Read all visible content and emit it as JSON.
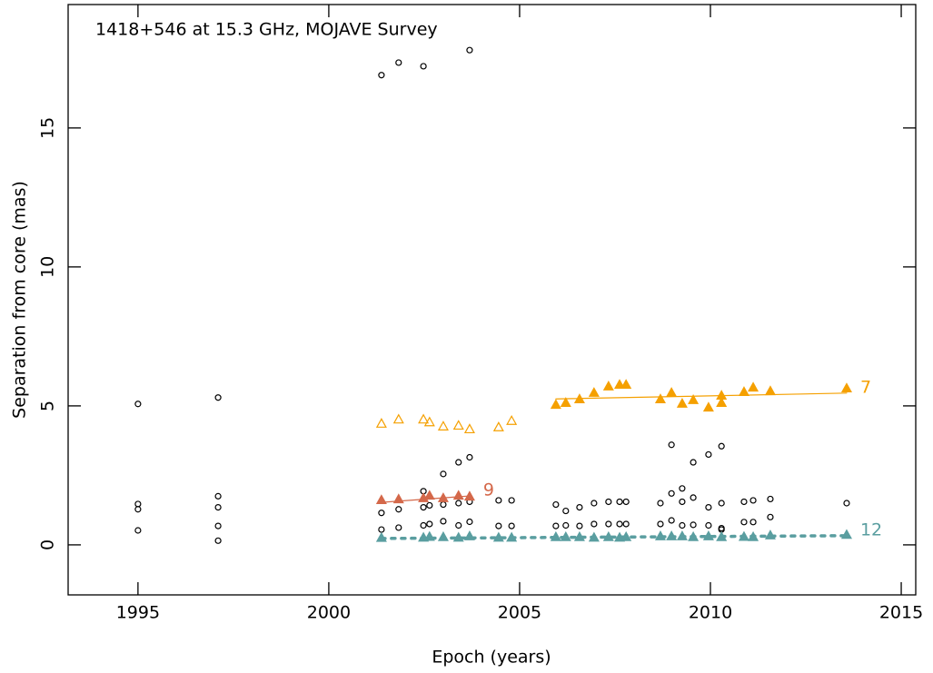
{
  "chart_data": {
    "type": "scatter",
    "title": "1418+546 at 15.3 GHz, MOJAVE Survey",
    "xlabel": "Epoch (years)",
    "ylabel": "Separation from core (mas)",
    "xlim": [
      1993.17,
      2015.38
    ],
    "ylim": [
      -1.8,
      19.44
    ],
    "xticks": [
      1995,
      2000,
      2005,
      2010,
      2015
    ],
    "yticks": [
      0,
      5,
      10,
      15
    ],
    "series": [
      {
        "color": "#000000",
        "marker": "circle",
        "filled": false,
        "x": [
          1995.0,
          1995.0,
          1995.0,
          1995.0,
          1997.1,
          1997.1,
          1997.1,
          1997.1,
          1997.1,
          2001.38,
          2001.38,
          2001.38,
          2001.83,
          2001.83,
          2001.83,
          2002.48,
          2002.48,
          2002.48,
          2002.48,
          2002.64,
          2002.64,
          2003.0,
          2003.0,
          2003.0,
          2003.4,
          2003.4,
          2003.4,
          2003.69,
          2003.69,
          2003.69,
          2003.69,
          2004.45,
          2004.45,
          2004.79,
          2004.79,
          2005.95,
          2005.95,
          2006.21,
          2006.21,
          2006.57,
          2006.57,
          2006.95,
          2006.95,
          2007.33,
          2007.33,
          2007.62,
          2007.62,
          2007.79,
          2007.79,
          2008.69,
          2008.69,
          2008.98,
          2008.98,
          2008.98,
          2009.26,
          2009.26,
          2009.26,
          2009.55,
          2009.55,
          2009.55,
          2009.95,
          2009.95,
          2009.95,
          2010.29,
          2010.29,
          2010.29,
          2010.29,
          2010.88,
          2010.88,
          2011.12,
          2011.12,
          2011.57,
          2011.57,
          2013.57
        ],
        "values": [
          5.07,
          1.47,
          1.28,
          0.52,
          5.3,
          1.75,
          1.35,
          0.68,
          0.15,
          16.9,
          1.15,
          0.55,
          17.35,
          1.28,
          0.62,
          17.22,
          1.93,
          1.35,
          0.7,
          1.42,
          0.75,
          2.55,
          1.45,
          0.85,
          2.97,
          1.5,
          0.7,
          17.8,
          3.15,
          1.55,
          0.83,
          1.6,
          0.68,
          1.6,
          0.68,
          1.45,
          0.68,
          1.22,
          0.7,
          1.35,
          0.68,
          1.5,
          0.75,
          1.55,
          0.75,
          1.55,
          0.75,
          1.55,
          0.75,
          1.5,
          0.75,
          3.6,
          1.85,
          0.88,
          2.03,
          1.55,
          0.7,
          2.97,
          1.7,
          0.72,
          3.25,
          1.35,
          0.7,
          3.55,
          1.5,
          0.6,
          0.55,
          1.55,
          0.82,
          1.6,
          0.82,
          1.65,
          1.0,
          1.5
        ]
      },
      {
        "color": "#f5a000",
        "marker": "triangle",
        "filled": false,
        "x": [
          2001.38,
          2001.83,
          2002.48,
          2002.64,
          2003.0,
          2003.4,
          2003.69,
          2004.45,
          2004.79
        ],
        "values": [
          4.35,
          4.5,
          4.5,
          4.4,
          4.25,
          4.28,
          4.15,
          4.22,
          4.45
        ]
      },
      {
        "name": "7",
        "color": "#f5a000",
        "marker": "triangle",
        "filled": true,
        "x": [
          2005.95,
          2006.21,
          2006.57,
          2006.95,
          2007.33,
          2007.62,
          2007.79,
          2008.69,
          2008.98,
          2009.26,
          2009.55,
          2009.95,
          2010.29,
          2010.29,
          2010.88,
          2011.12,
          2011.57,
          2013.57
        ],
        "values": [
          5.03,
          5.1,
          5.23,
          5.46,
          5.69,
          5.75,
          5.75,
          5.23,
          5.46,
          5.07,
          5.2,
          4.93,
          5.36,
          5.1,
          5.49,
          5.65,
          5.52,
          5.62
        ],
        "fit": {
          "x": [
            2005.95,
            2013.57
          ],
          "values": [
            5.25,
            5.46
          ],
          "dotted": false
        }
      },
      {
        "name": "9",
        "color": "#d4684a",
        "marker": "triangle",
        "filled": true,
        "x": [
          2001.38,
          2001.83,
          2002.48,
          2002.64,
          2003.0,
          2003.4,
          2003.69
        ],
        "values": [
          1.6,
          1.63,
          1.67,
          1.76,
          1.67,
          1.76,
          1.73
        ],
        "fit": {
          "x": [
            2001.38,
            2003.69
          ],
          "values": [
            1.53,
            1.76
          ],
          "dotted": false
        }
      },
      {
        "name": "12",
        "color": "#5a9ea0",
        "marker": "triangle",
        "filled": true,
        "x": [
          2001.38,
          2002.48,
          2002.64,
          2003.0,
          2003.4,
          2003.69,
          2004.45,
          2004.79,
          2005.95,
          2006.21,
          2006.57,
          2006.95,
          2007.33,
          2007.62,
          2007.79,
          2008.69,
          2008.98,
          2009.26,
          2009.55,
          2009.95,
          2010.29,
          2010.88,
          2011.12,
          2011.57,
          2013.57
        ],
        "values": [
          0.24,
          0.25,
          0.28,
          0.27,
          0.25,
          0.3,
          0.25,
          0.25,
          0.27,
          0.27,
          0.27,
          0.25,
          0.27,
          0.25,
          0.27,
          0.3,
          0.3,
          0.3,
          0.27,
          0.3,
          0.27,
          0.28,
          0.27,
          0.33,
          0.35
        ],
        "fit": {
          "x": [
            2001.38,
            2013.57
          ],
          "values": [
            0.23,
            0.33
          ],
          "dotted": true
        }
      }
    ]
  }
}
